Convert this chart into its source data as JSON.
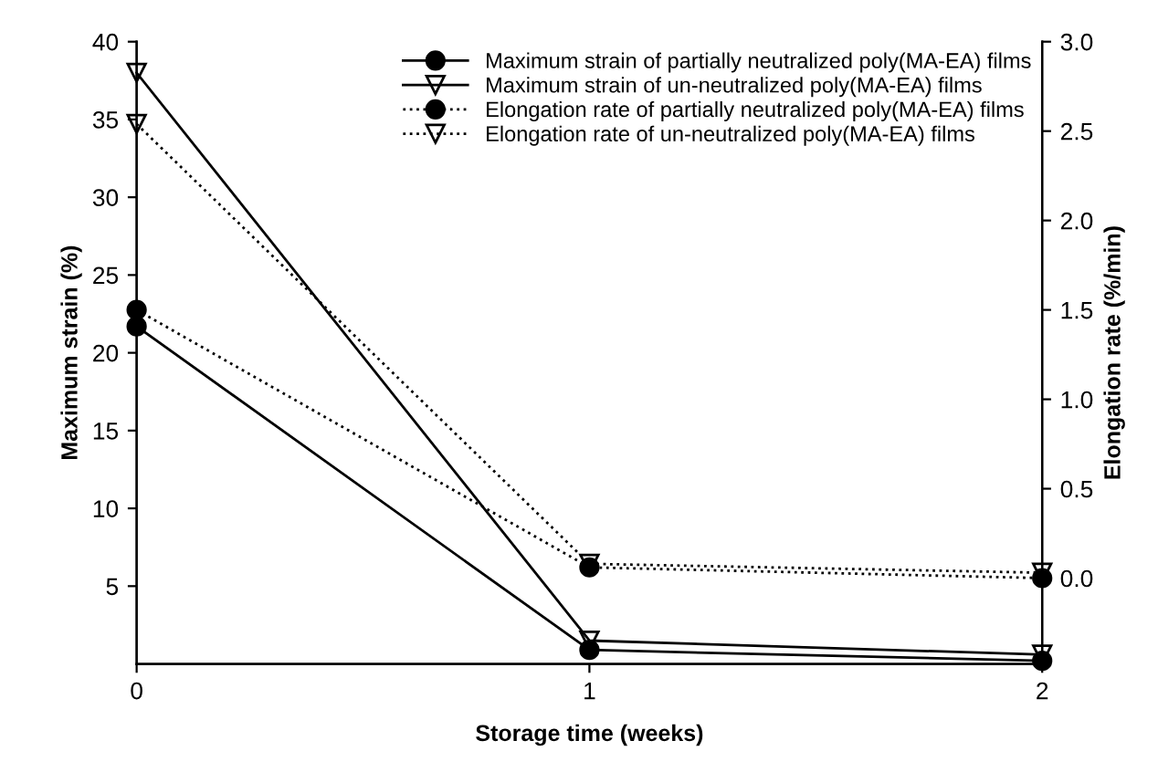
{
  "chart_data": {
    "type": "line",
    "xlabel": "Storage time (weeks)",
    "ylabel": "Maximum strain (%)",
    "y2label": "Elongation rate (%/min)",
    "x": [
      0,
      1,
      2
    ],
    "xlim": [
      0,
      2
    ],
    "xticks": [
      0,
      1,
      2
    ],
    "ylim": [
      0,
      40
    ],
    "yticks": [
      5,
      10,
      15,
      20,
      25,
      30,
      35,
      40
    ],
    "y2lim": [
      -0.48,
      3.0
    ],
    "y2ticks": [
      {
        "value": 0.0,
        "label": "0.0"
      },
      {
        "value": 0.5,
        "label": "0.5"
      },
      {
        "value": 1.0,
        "label": "1.0"
      },
      {
        "value": 1.5,
        "label": "1.5"
      },
      {
        "value": 2.0,
        "label": "2.0"
      },
      {
        "value": 2.5,
        "label": "2.5"
      },
      {
        "value": 3.0,
        "label": "3.0"
      }
    ],
    "legend": "top right",
    "grid": false,
    "series": [
      {
        "name": "Maximum strain of partially neutralized poly(MA-EA) films",
        "color": "#000000",
        "values": [
          21.7,
          0.9,
          0.2
        ],
        "marker": "circle",
        "line_style": "solid"
      },
      {
        "name": "Maximum strain of un-neutralized poly(MA-EA) films",
        "color": "#000000",
        "values": [
          38.0,
          1.5,
          0.6
        ],
        "marker": "triangle",
        "line_style": "solid"
      },
      {
        "name": "Elongation rate of partially neutralized poly(MA-EA) films",
        "color": "#000000",
        "values": [
          1.5,
          0.06,
          0.0
        ],
        "marker": "circle",
        "line_style": "dotted",
        "axis": "y2"
      },
      {
        "name": "Elongation rate of un-neutralized poly(MA-EA) films",
        "color": "#000000",
        "values": [
          2.54,
          0.08,
          0.03
        ],
        "marker": "triangle",
        "line_style": "dotted",
        "axis": "y2"
      }
    ]
  }
}
